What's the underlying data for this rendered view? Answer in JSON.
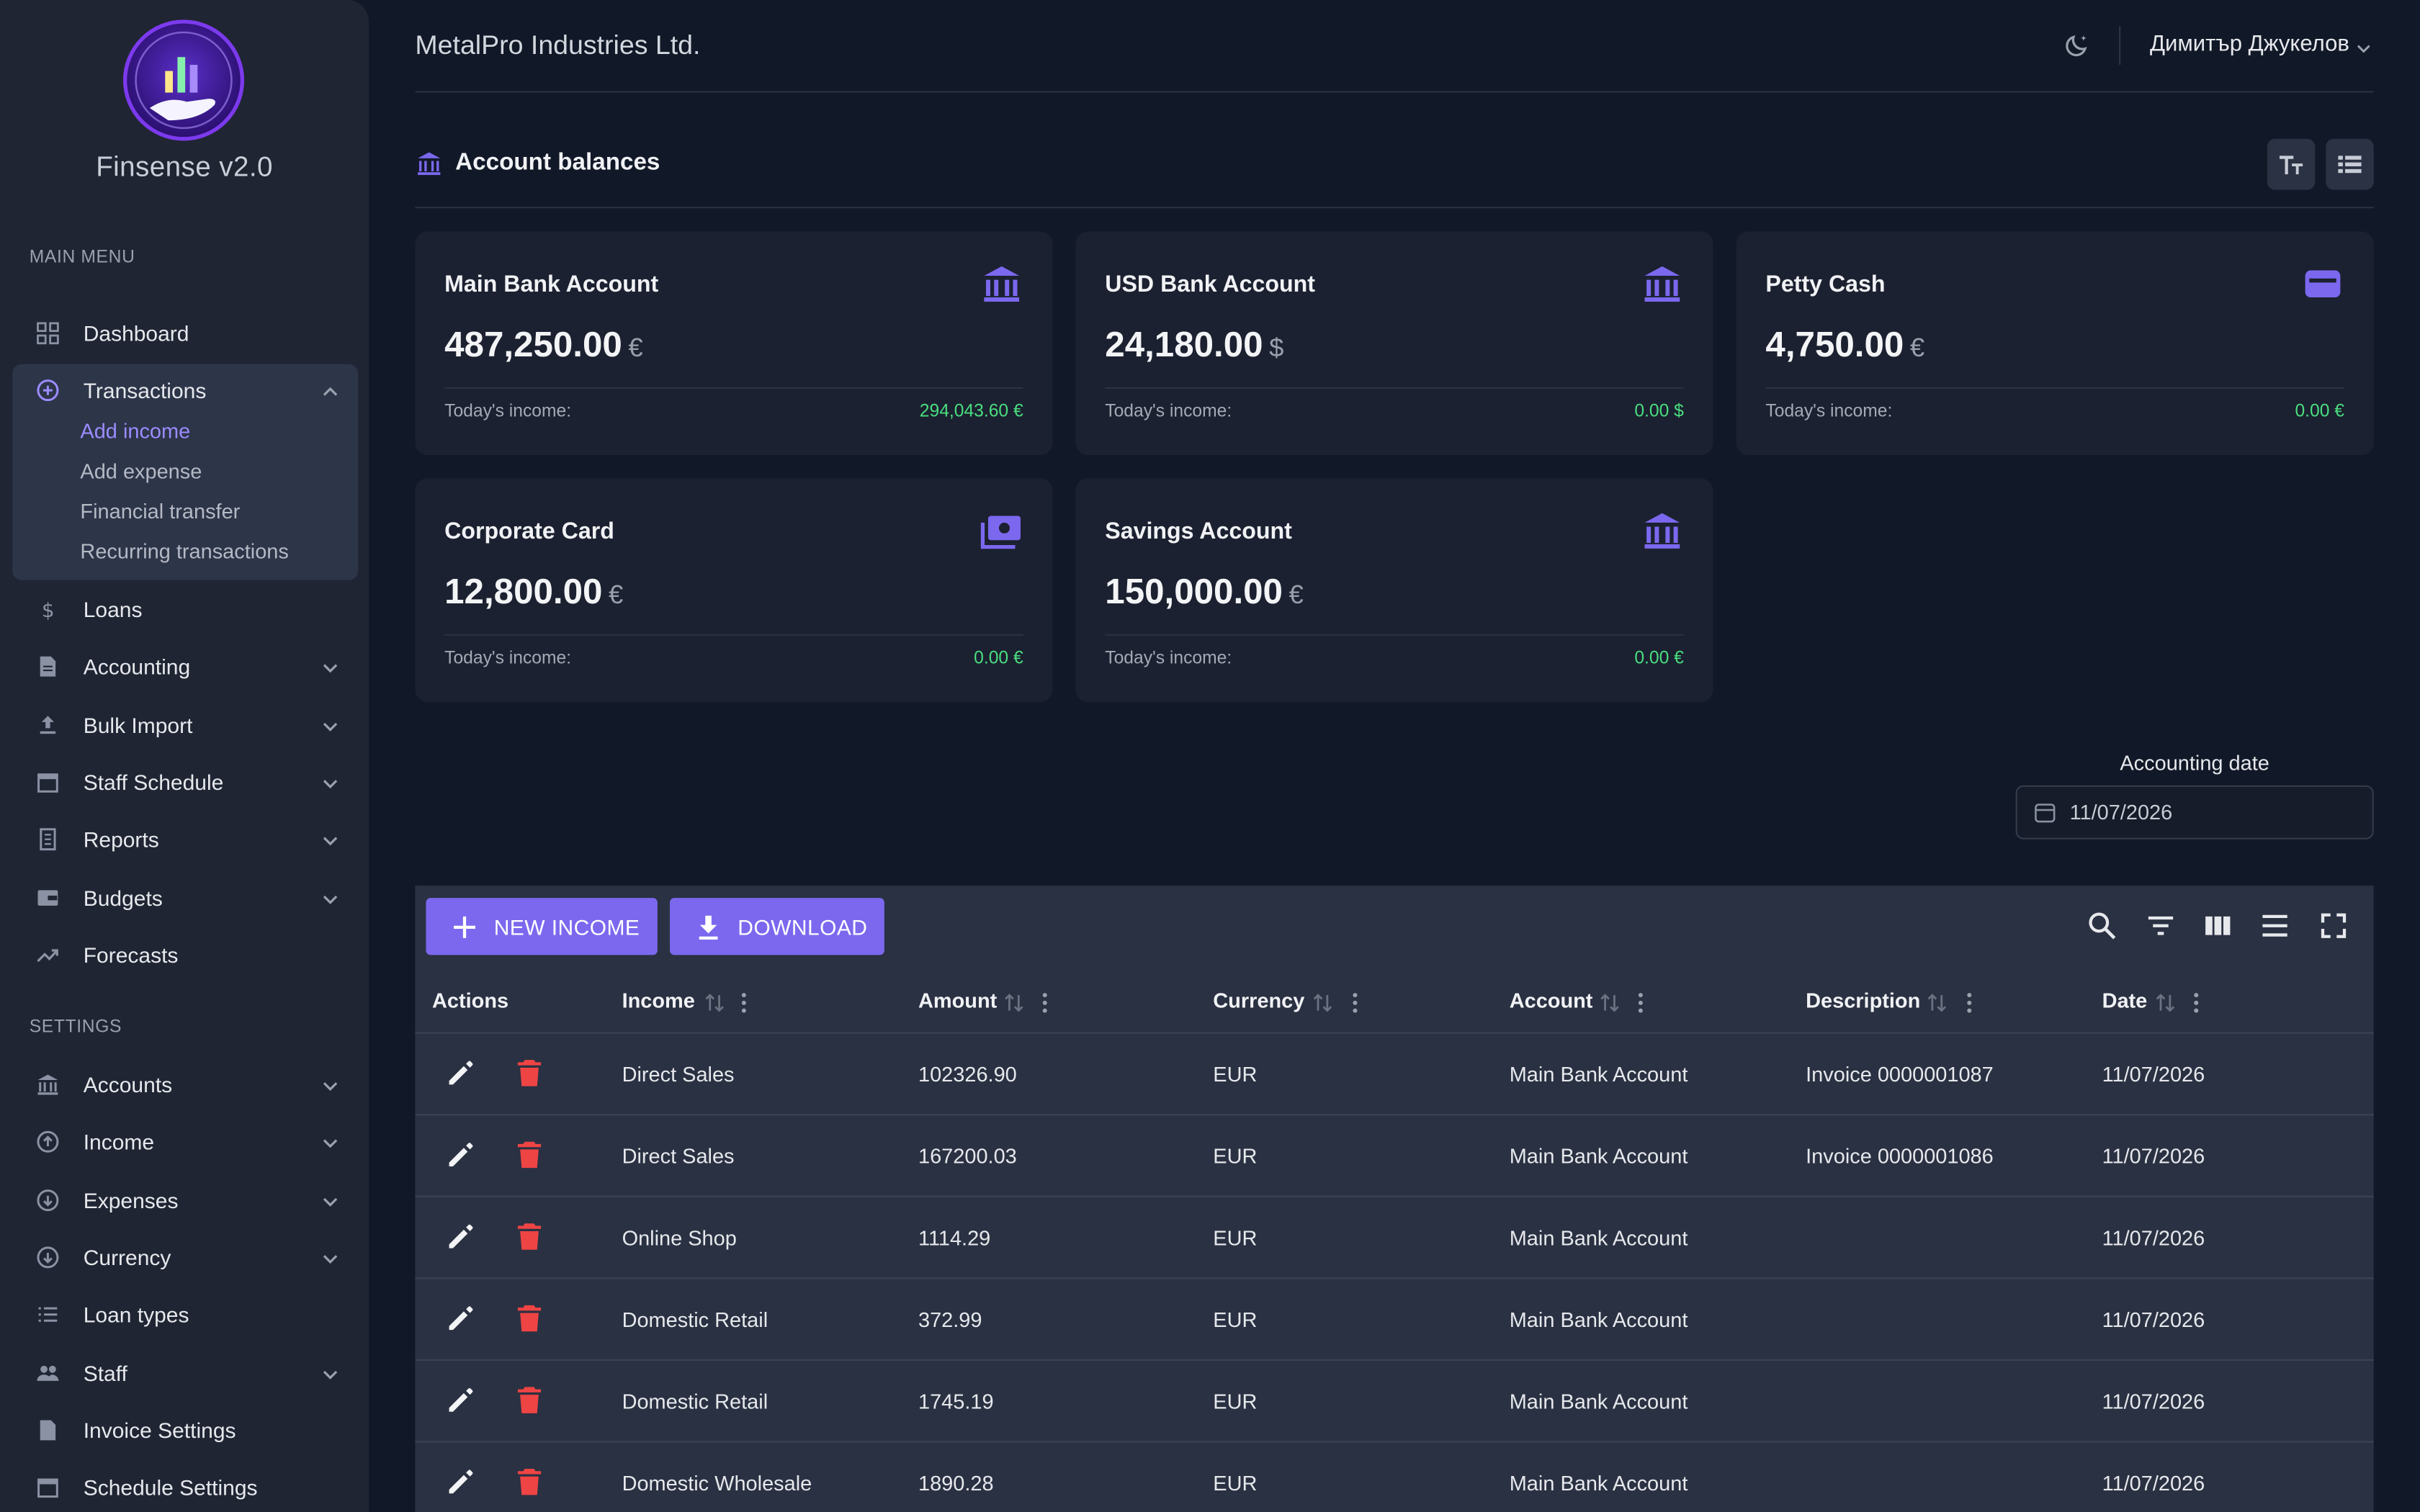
{
  "app": {
    "brand": "Finsense v2.0",
    "company": "MetalPro Industries Ltd.",
    "user": "Димитър Джукелов"
  },
  "sidebar": {
    "main_menu_label": "MAIN MENU",
    "settings_label": "SETTINGS",
    "main_items": [
      {
        "label": "Dashboard",
        "icon": "grid-icon"
      },
      {
        "label": "Transactions",
        "icon": "plus-circle-icon",
        "expanded": true
      },
      {
        "label": "Loans",
        "icon": "dollar-icon"
      },
      {
        "label": "Accounting",
        "icon": "document-icon"
      },
      {
        "label": "Bulk Import",
        "icon": "upload-icon"
      },
      {
        "label": "Staff Schedule",
        "icon": "calendar-icon"
      },
      {
        "label": "Reports",
        "icon": "receipt-icon"
      },
      {
        "label": "Budgets",
        "icon": "wallet-icon"
      },
      {
        "label": "Forecasts",
        "icon": "trending-icon"
      }
    ],
    "transactions_sub": [
      "Add income",
      "Add expense",
      "Financial transfer",
      "Recurring transactions"
    ],
    "settings_items": [
      {
        "label": "Accounts",
        "icon": "bank-icon"
      },
      {
        "label": "Income",
        "icon": "arrow-up-circle-icon"
      },
      {
        "label": "Expenses",
        "icon": "arrow-down-circle-icon"
      },
      {
        "label": "Currency",
        "icon": "currency-circle-icon"
      },
      {
        "label": "Loan types",
        "icon": "list-icon"
      },
      {
        "label": "Staff",
        "icon": "people-icon"
      },
      {
        "label": "Invoice Settings",
        "icon": "file-icon"
      },
      {
        "label": "Schedule Settings",
        "icon": "calendar-icon"
      }
    ]
  },
  "balances": {
    "title": "Account balances",
    "income_label": "Today's income:",
    "cards": [
      {
        "name": "Main Bank Account",
        "balance": "487,250.00",
        "currency": "€",
        "income": "294,043.60 €",
        "icon": "bank-icon"
      },
      {
        "name": "USD Bank Account",
        "balance": "24,180.00",
        "currency": "$",
        "income": "0.00 $",
        "icon": "bank-icon"
      },
      {
        "name": "Petty Cash",
        "balance": "4,750.00",
        "currency": "€",
        "income": "0.00 €",
        "icon": "wallet-icon"
      },
      {
        "name": "Corporate Card",
        "balance": "12,800.00",
        "currency": "€",
        "income": "0.00 €",
        "icon": "cash-icon"
      },
      {
        "name": "Savings Account",
        "balance": "150,000.00",
        "currency": "€",
        "income": "0.00 €",
        "icon": "bank-icon"
      }
    ]
  },
  "accounting_date": {
    "label": "Accounting date",
    "value": "11/07/2026"
  },
  "table": {
    "new_button": "NEW INCOME",
    "download_button": "DOWNLOAD",
    "columns": [
      "Actions",
      "Income",
      "Amount",
      "Currency",
      "Account",
      "Description",
      "Date"
    ],
    "rows": [
      {
        "income": "Direct Sales",
        "amount": "102326.90",
        "currency": "EUR",
        "account": "Main Bank Account",
        "description": "Invoice 0000001087",
        "date": "11/07/2026"
      },
      {
        "income": "Direct Sales",
        "amount": "167200.03",
        "currency": "EUR",
        "account": "Main Bank Account",
        "description": "Invoice 0000001086",
        "date": "11/07/2026"
      },
      {
        "income": "Online Shop",
        "amount": "1114.29",
        "currency": "EUR",
        "account": "Main Bank Account",
        "description": "",
        "date": "11/07/2026"
      },
      {
        "income": "Domestic Retail",
        "amount": "372.99",
        "currency": "EUR",
        "account": "Main Bank Account",
        "description": "",
        "date": "11/07/2026"
      },
      {
        "income": "Domestic Retail",
        "amount": "1745.19",
        "currency": "EUR",
        "account": "Main Bank Account",
        "description": "",
        "date": "11/07/2026"
      },
      {
        "income": "Domestic Wholesale",
        "amount": "1890.28",
        "currency": "EUR",
        "account": "Main Bank Account",
        "description": "",
        "date": "11/07/2026"
      }
    ]
  },
  "colors": {
    "accent": "#7b68ee",
    "positive": "#4ade80",
    "danger": "#ef4444",
    "active_sub": "#9b8cff"
  }
}
